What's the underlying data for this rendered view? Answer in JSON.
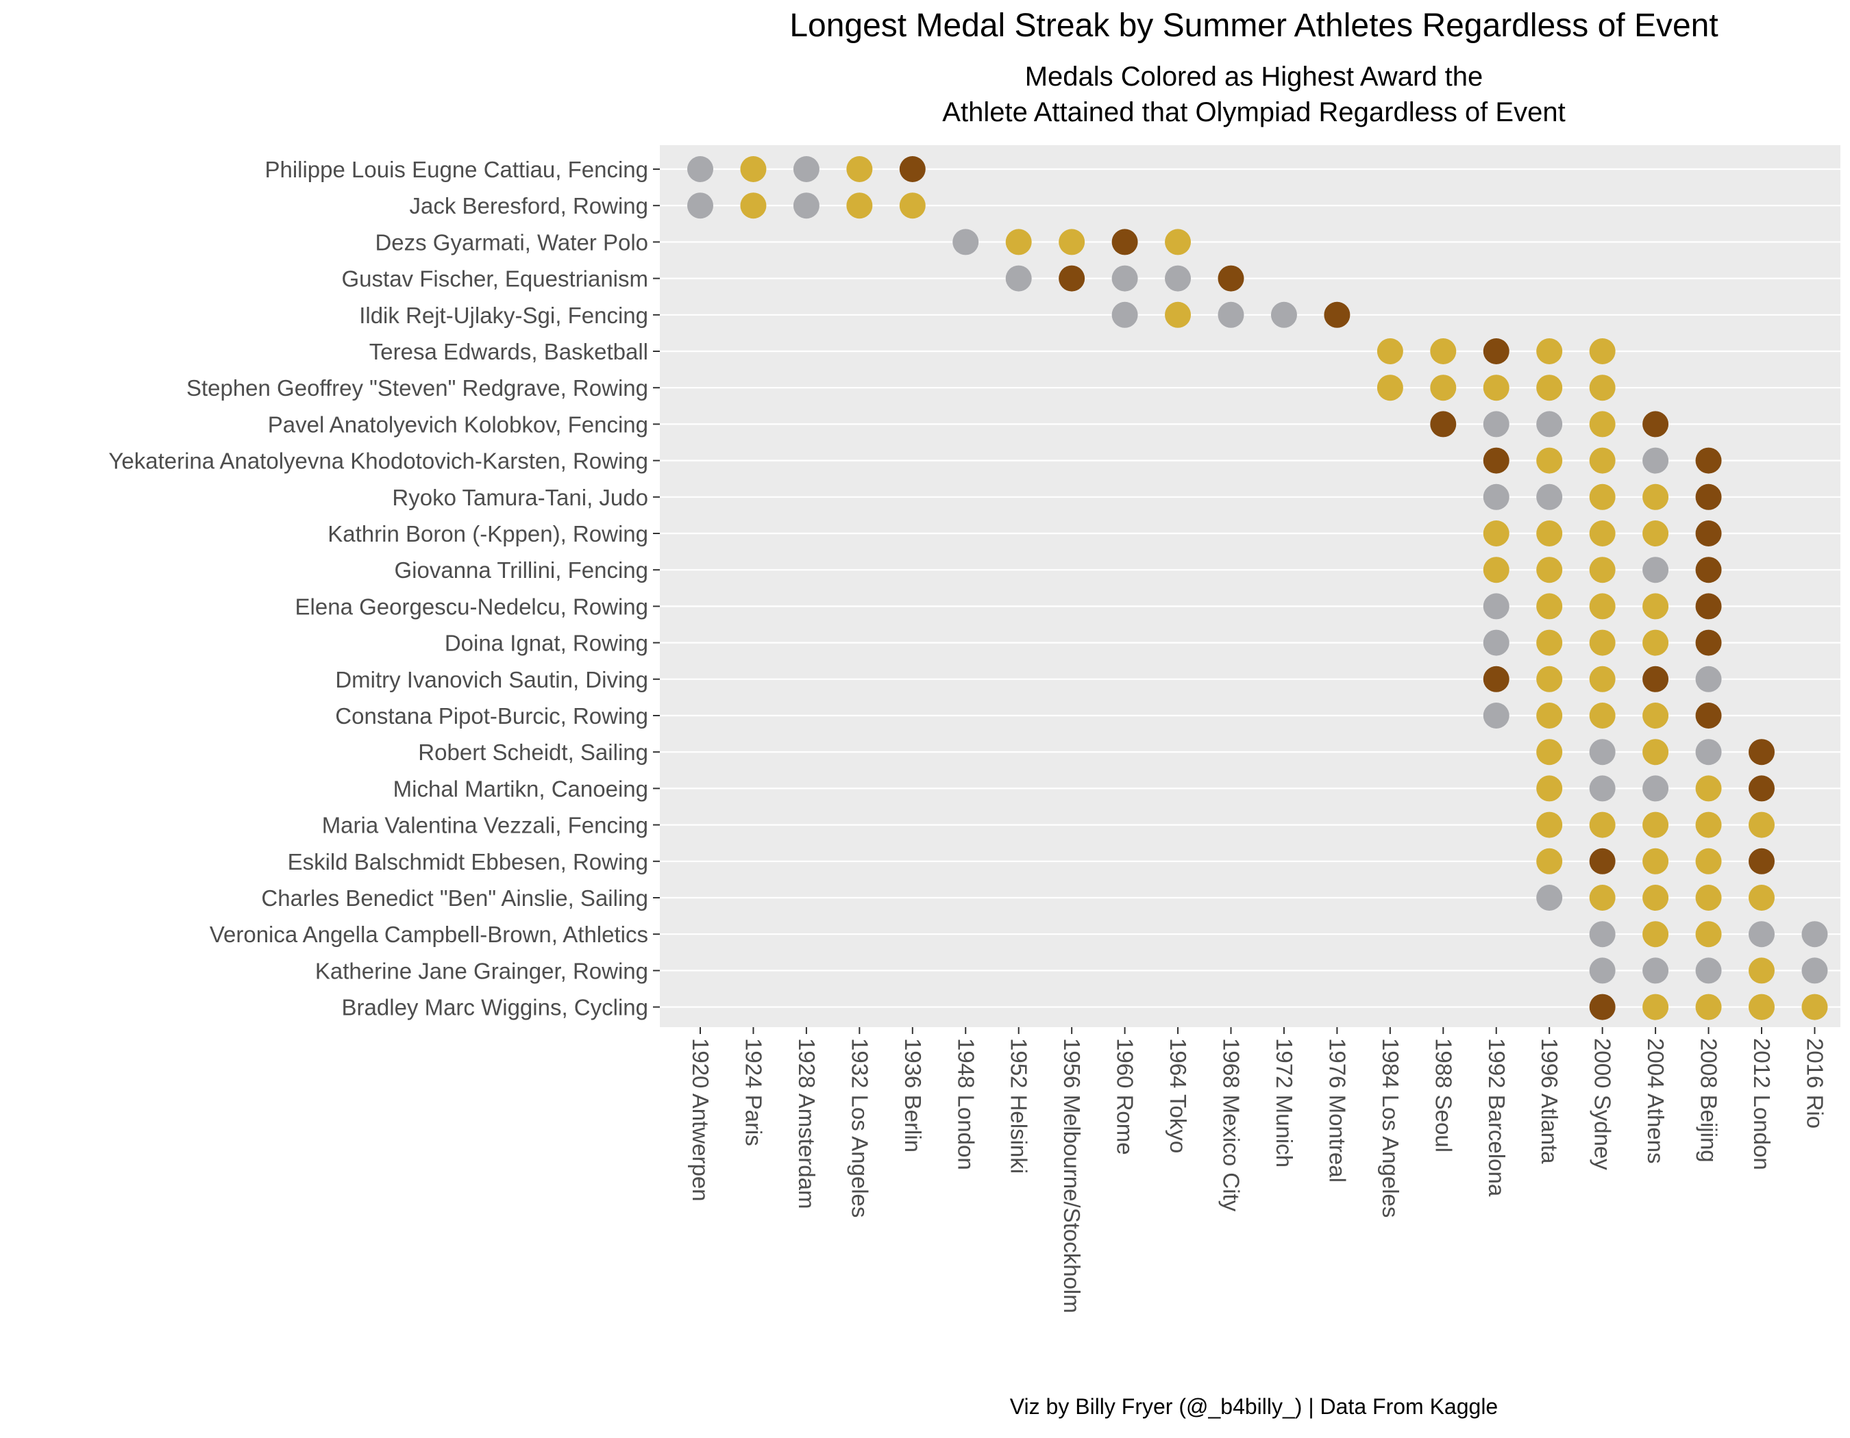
{
  "title": "Longest Medal Streak by Summer Athletes Regardless of Event",
  "subtitle_line1": "Medals Colored as Highest Award the",
  "subtitle_line2": "Athlete Attained that Olympiad Regardless of Event",
  "caption": "Viz by Billy Fryer (@_b4billy_) | Data From Kaggle",
  "colors": {
    "gold": "#D4AF37",
    "silver": "#A8A9AD",
    "bronze": "#824A0F",
    "panel": "#EBEBEB",
    "grid": "#FFFFFF"
  },
  "chart_data": {
    "type": "scatter",
    "title": "Longest Medal Streak by Summer Athletes Regardless of Event",
    "subtitle": "Medals Colored as Highest Award the Athlete Attained that Olympiad Regardless of Event",
    "xlabel": "",
    "ylabel": "",
    "legend": "none",
    "grid": true,
    "x_categories": [
      "1920 Antwerpen",
      "1924 Paris",
      "1928 Amsterdam",
      "1932 Los Angeles",
      "1936 Berlin",
      "1948 London",
      "1952 Helsinki",
      "1956 Melbourne/Stockholm",
      "1960 Rome",
      "1964 Tokyo",
      "1968 Mexico City",
      "1972 Munich",
      "1976 Montreal",
      "1984 Los Angeles",
      "1988 Seoul",
      "1992 Barcelona",
      "1996 Atlanta",
      "2000 Sydney",
      "2004 Athens",
      "2008 Beijing",
      "2012 London",
      "2016 Rio"
    ],
    "athletes": [
      {
        "name": "Philippe Louis Eugne Cattiau, Fencing",
        "medals": {
          "1920 Antwerpen": "silver",
          "1924 Paris": "gold",
          "1928 Amsterdam": "silver",
          "1932 Los Angeles": "gold",
          "1936 Berlin": "bronze"
        }
      },
      {
        "name": "Jack Beresford, Rowing",
        "medals": {
          "1920 Antwerpen": "silver",
          "1924 Paris": "gold",
          "1928 Amsterdam": "silver",
          "1932 Los Angeles": "gold",
          "1936 Berlin": "gold"
        }
      },
      {
        "name": "Dezs Gyarmati, Water Polo",
        "medals": {
          "1948 London": "silver",
          "1952 Helsinki": "gold",
          "1956 Melbourne/Stockholm": "gold",
          "1960 Rome": "bronze",
          "1964 Tokyo": "gold"
        }
      },
      {
        "name": "Gustav Fischer, Equestrianism",
        "medals": {
          "1952 Helsinki": "silver",
          "1956 Melbourne/Stockholm": "bronze",
          "1960 Rome": "silver",
          "1964 Tokyo": "silver",
          "1968 Mexico City": "bronze"
        }
      },
      {
        "name": "Ildik Rejt-Ujlaky-Sgi, Fencing",
        "medals": {
          "1960 Rome": "silver",
          "1964 Tokyo": "gold",
          "1968 Mexico City": "silver",
          "1972 Munich": "silver",
          "1976 Montreal": "bronze"
        }
      },
      {
        "name": "Teresa Edwards, Basketball",
        "medals": {
          "1984 Los Angeles": "gold",
          "1988 Seoul": "gold",
          "1992 Barcelona": "bronze",
          "1996 Atlanta": "gold",
          "2000 Sydney": "gold"
        }
      },
      {
        "name": "Stephen Geoffrey \"Steven\" Redgrave, Rowing",
        "medals": {
          "1984 Los Angeles": "gold",
          "1988 Seoul": "gold",
          "1992 Barcelona": "gold",
          "1996 Atlanta": "gold",
          "2000 Sydney": "gold"
        }
      },
      {
        "name": "Pavel Anatolyevich Kolobkov, Fencing",
        "medals": {
          "1988 Seoul": "bronze",
          "1992 Barcelona": "silver",
          "1996 Atlanta": "silver",
          "2000 Sydney": "gold",
          "2004 Athens": "bronze"
        }
      },
      {
        "name": "Yekaterina Anatolyevna Khodotovich-Karsten, Rowing",
        "medals": {
          "1992 Barcelona": "bronze",
          "1996 Atlanta": "gold",
          "2000 Sydney": "gold",
          "2004 Athens": "silver",
          "2008 Beijing": "bronze"
        }
      },
      {
        "name": "Ryoko Tamura-Tani, Judo",
        "medals": {
          "1992 Barcelona": "silver",
          "1996 Atlanta": "silver",
          "2000 Sydney": "gold",
          "2004 Athens": "gold",
          "2008 Beijing": "bronze"
        }
      },
      {
        "name": "Kathrin Boron (-Kppen), Rowing",
        "medals": {
          "1992 Barcelona": "gold",
          "1996 Atlanta": "gold",
          "2000 Sydney": "gold",
          "2004 Athens": "gold",
          "2008 Beijing": "bronze"
        }
      },
      {
        "name": "Giovanna Trillini, Fencing",
        "medals": {
          "1992 Barcelona": "gold",
          "1996 Atlanta": "gold",
          "2000 Sydney": "gold",
          "2004 Athens": "silver",
          "2008 Beijing": "bronze"
        }
      },
      {
        "name": "Elena Georgescu-Nedelcu, Rowing",
        "medals": {
          "1992 Barcelona": "silver",
          "1996 Atlanta": "gold",
          "2000 Sydney": "gold",
          "2004 Athens": "gold",
          "2008 Beijing": "bronze"
        }
      },
      {
        "name": "Doina Ignat, Rowing",
        "medals": {
          "1992 Barcelona": "silver",
          "1996 Atlanta": "gold",
          "2000 Sydney": "gold",
          "2004 Athens": "gold",
          "2008 Beijing": "bronze"
        }
      },
      {
        "name": "Dmitry Ivanovich Sautin, Diving",
        "medals": {
          "1992 Barcelona": "bronze",
          "1996 Atlanta": "gold",
          "2000 Sydney": "gold",
          "2004 Athens": "bronze",
          "2008 Beijing": "silver"
        }
      },
      {
        "name": "Constana Pipot-Burcic, Rowing",
        "medals": {
          "1992 Barcelona": "silver",
          "1996 Atlanta": "gold",
          "2000 Sydney": "gold",
          "2004 Athens": "gold",
          "2008 Beijing": "bronze"
        }
      },
      {
        "name": "Robert Scheidt, Sailing",
        "medals": {
          "1996 Atlanta": "gold",
          "2000 Sydney": "silver",
          "2004 Athens": "gold",
          "2008 Beijing": "silver",
          "2012 London": "bronze"
        }
      },
      {
        "name": "Michal Martikn, Canoeing",
        "medals": {
          "1996 Atlanta": "gold",
          "2000 Sydney": "silver",
          "2004 Athens": "silver",
          "2008 Beijing": "gold",
          "2012 London": "bronze"
        }
      },
      {
        "name": "Maria Valentina Vezzali, Fencing",
        "medals": {
          "1996 Atlanta": "gold",
          "2000 Sydney": "gold",
          "2004 Athens": "gold",
          "2008 Beijing": "gold",
          "2012 London": "gold"
        }
      },
      {
        "name": "Eskild Balschmidt Ebbesen, Rowing",
        "medals": {
          "1996 Atlanta": "gold",
          "2000 Sydney": "bronze",
          "2004 Athens": "gold",
          "2008 Beijing": "gold",
          "2012 London": "bronze"
        }
      },
      {
        "name": "Charles Benedict \"Ben\" Ainslie, Sailing",
        "medals": {
          "1996 Atlanta": "silver",
          "2000 Sydney": "gold",
          "2004 Athens": "gold",
          "2008 Beijing": "gold",
          "2012 London": "gold"
        }
      },
      {
        "name": "Veronica Angella Campbell-Brown, Athletics",
        "medals": {
          "2000 Sydney": "silver",
          "2004 Athens": "gold",
          "2008 Beijing": "gold",
          "2012 London": "silver",
          "2016 Rio": "silver"
        }
      },
      {
        "name": "Katherine Jane Grainger, Rowing",
        "medals": {
          "2000 Sydney": "silver",
          "2004 Athens": "silver",
          "2008 Beijing": "silver",
          "2012 London": "gold",
          "2016 Rio": "silver"
        }
      },
      {
        "name": "Bradley Marc Wiggins, Cycling",
        "medals": {
          "2000 Sydney": "bronze",
          "2004 Athens": "gold",
          "2008 Beijing": "gold",
          "2012 London": "gold",
          "2016 Rio": "gold"
        }
      }
    ]
  }
}
